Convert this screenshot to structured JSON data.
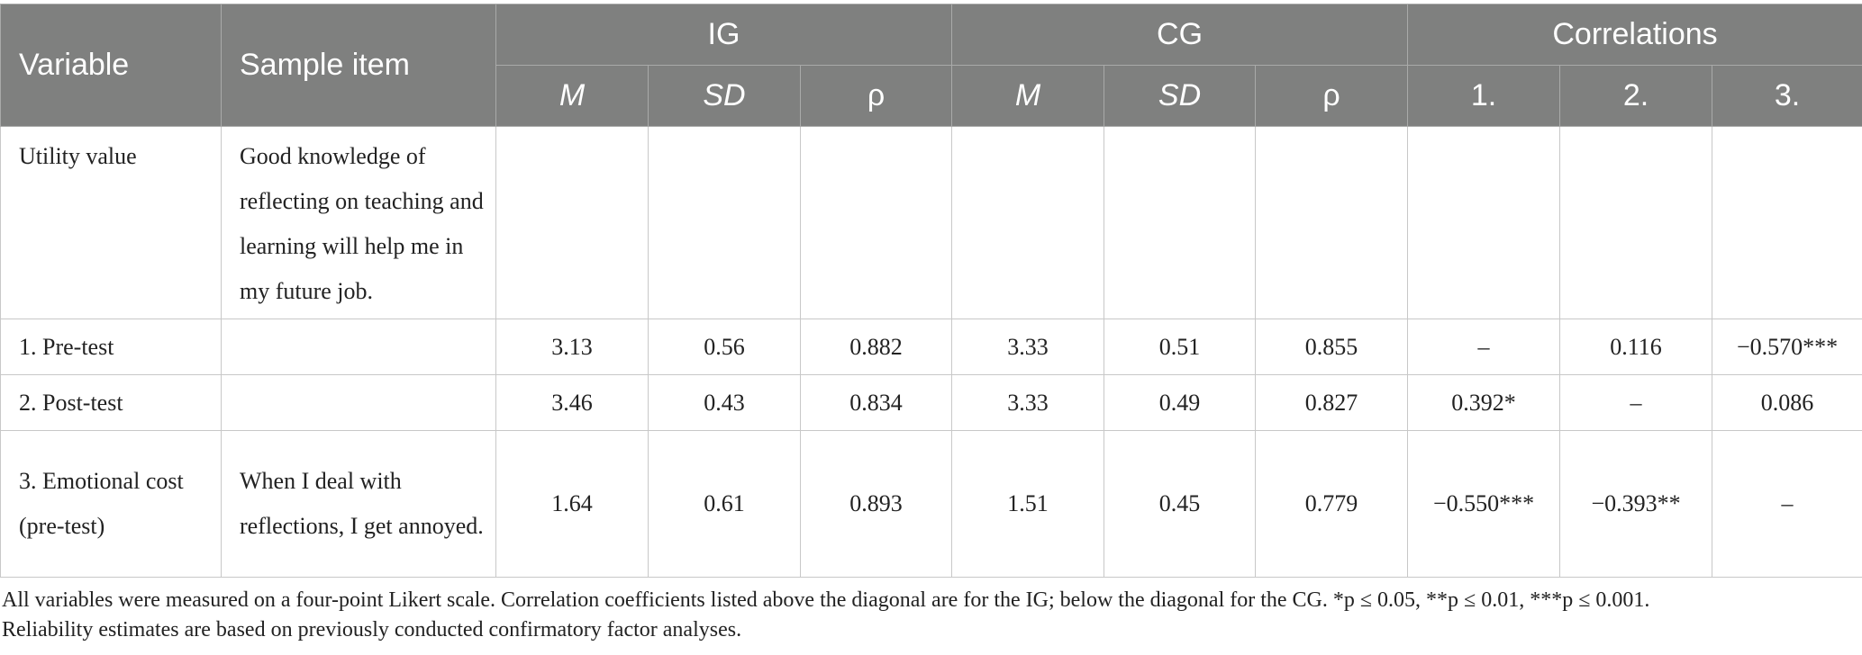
{
  "table": {
    "header": {
      "variable": "Variable",
      "sample_item": "Sample item",
      "group_ig": "IG",
      "group_cg": "CG",
      "group_correlations": "Correlations",
      "m": "M",
      "sd": "SD",
      "rho": "ρ",
      "corr_1": "1.",
      "corr_2": "2.",
      "corr_3": "3."
    },
    "rows": [
      {
        "variable": "Utility value",
        "sample": "Good knowledge of reflecting on teaching and learning will help me in my future job.",
        "ig_m": "",
        "ig_sd": "",
        "ig_rho": "",
        "cg_m": "",
        "cg_sd": "",
        "cg_rho": "",
        "c1": "",
        "c2": "",
        "c3": ""
      },
      {
        "variable": "1. Pre-test",
        "sample": "",
        "ig_m": "3.13",
        "ig_sd": "0.56",
        "ig_rho": "0.882",
        "cg_m": "3.33",
        "cg_sd": "0.51",
        "cg_rho": "0.855",
        "c1": "–",
        "c2": "0.116",
        "c3": "−0.570***"
      },
      {
        "variable": "2. Post-test",
        "sample": "",
        "ig_m": "3.46",
        "ig_sd": "0.43",
        "ig_rho": "0.834",
        "cg_m": "3.33",
        "cg_sd": "0.49",
        "cg_rho": "0.827",
        "c1": "0.392*",
        "c2": "–",
        "c3": "0.086"
      },
      {
        "variable": "3. Emotional cost (pre-test)",
        "sample": "When I deal with reflections, I get annoyed.",
        "ig_m": "1.64",
        "ig_sd": "0.61",
        "ig_rho": "0.893",
        "cg_m": "1.51",
        "cg_sd": "0.45",
        "cg_rho": "0.779",
        "c1": "−0.550***",
        "c2": "−0.393**",
        "c3": "–"
      }
    ]
  },
  "notes": {
    "line1": "All variables were measured on a four-point Likert scale. Correlation coefficients listed above the diagonal are for the IG; below the diagonal for the CG. *p ≤ 0.05, **p ≤ 0.01, ***p ≤ 0.001.",
    "line2": "Reliability estimates are based on previously conducted confirmatory factor analyses."
  },
  "colors": {
    "header_background": "#7f807f",
    "header_text": "#ffffff",
    "grid_lines": "#c8c8c8",
    "body_text": "#222222"
  }
}
